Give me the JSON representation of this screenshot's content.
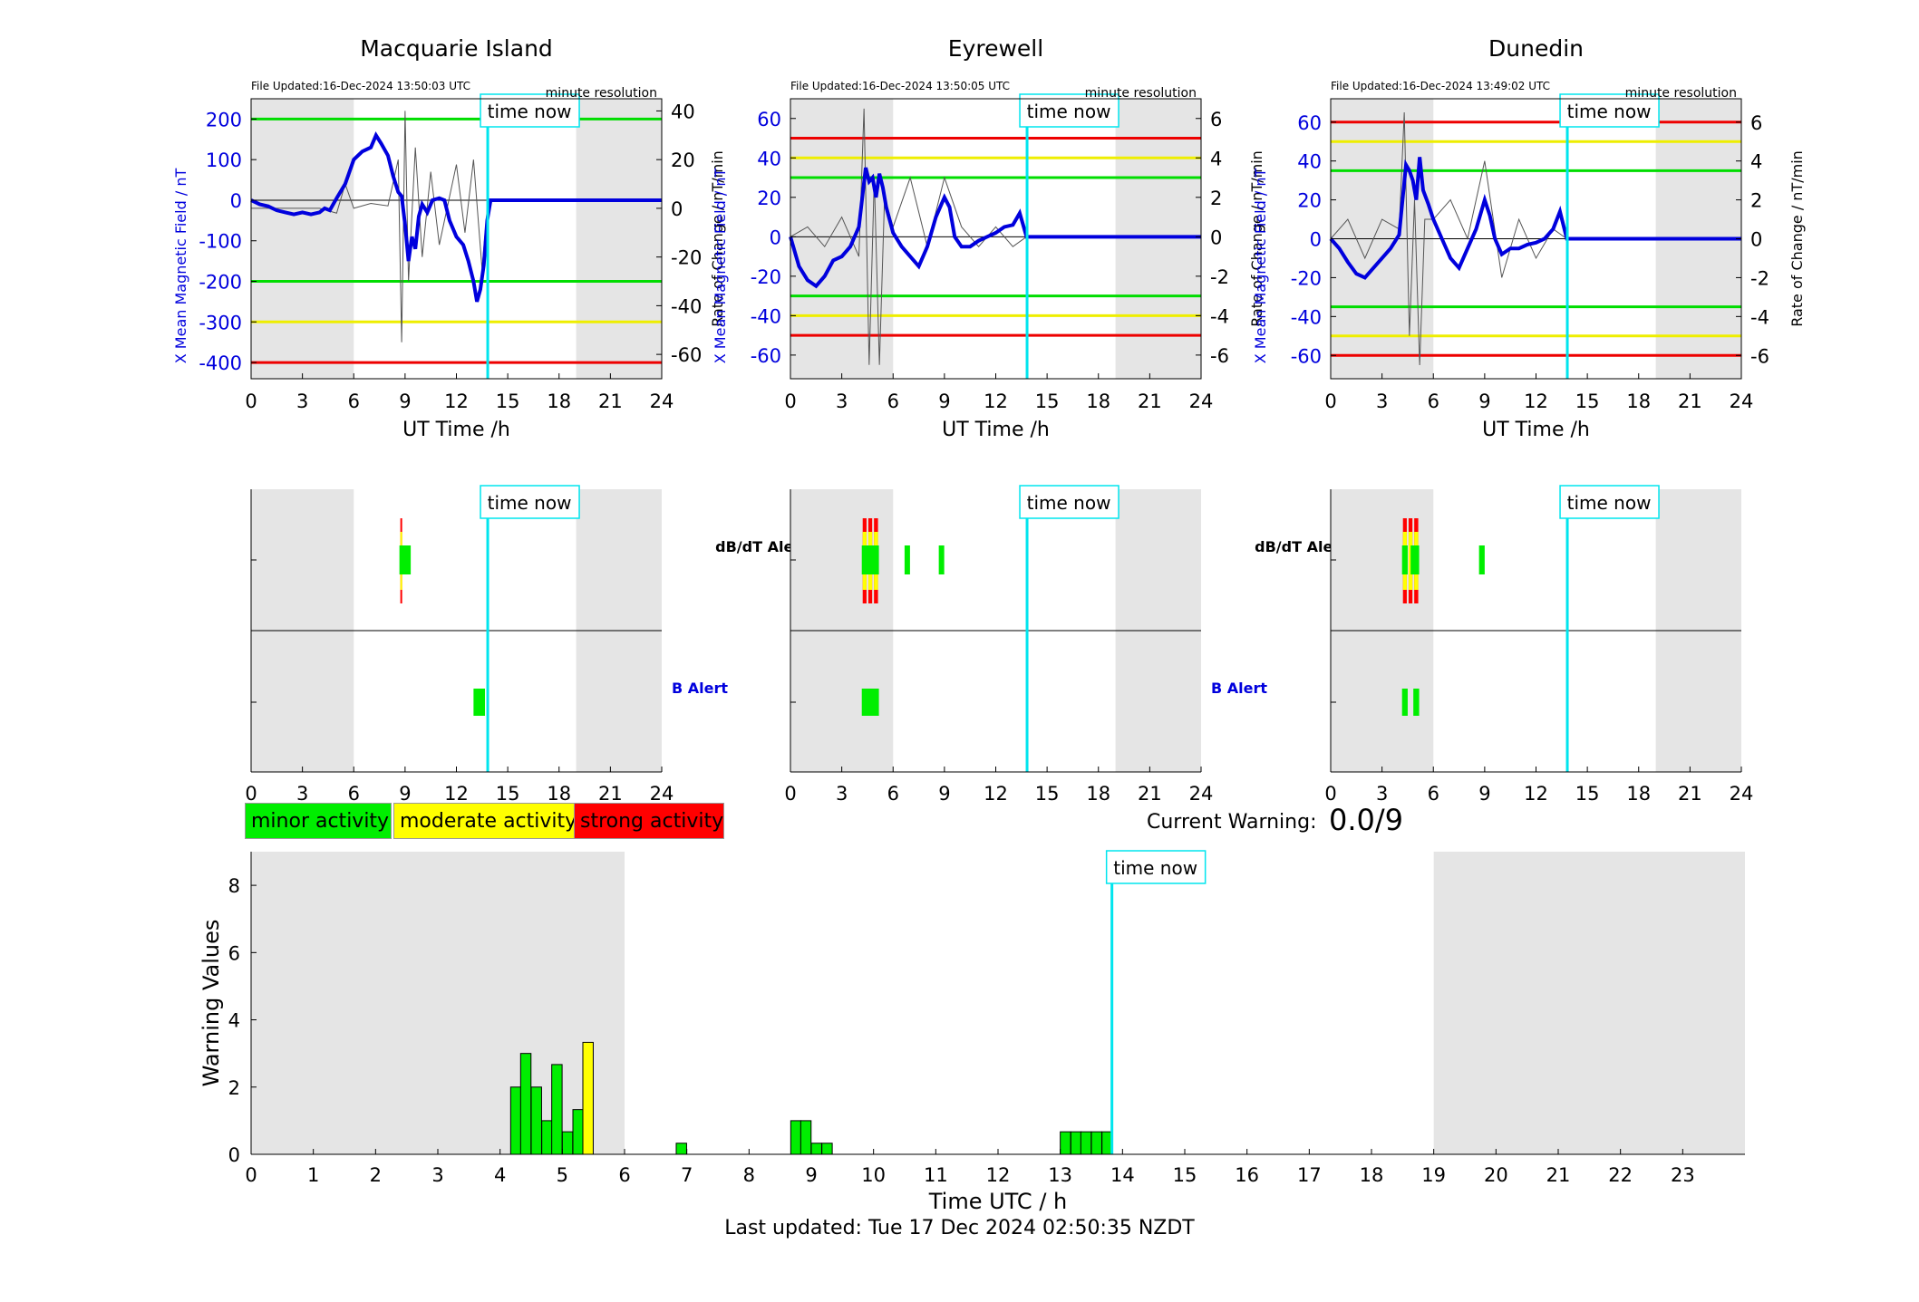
{
  "stations": [
    {
      "name": "Macquarie Island",
      "file_updated": "File Updated:16-Dec-2024 13:50:03 UTC",
      "resolution": "minute resolution",
      "ylabel_left": "X Mean Magnetic Field / nT",
      "ylabel_right": "Rate of Change / nT/min",
      "xlabel": "UT Time /h",
      "y_ticks": [
        200,
        100,
        0,
        -100,
        -200,
        -300,
        -400
      ],
      "ylim": [
        -440,
        250
      ],
      "rate_ticks": [
        40,
        20,
        0,
        -20,
        -40,
        -60
      ],
      "rate_lim": [
        -70,
        45
      ],
      "thresholds": [
        {
          "value": 200,
          "color": "#00dd00"
        },
        {
          "value": -200,
          "color": "#00dd00"
        },
        {
          "value": -300,
          "color": "#eeee00"
        },
        {
          "value": -400,
          "color": "#ee0000"
        }
      ]
    },
    {
      "name": "Eyrewell",
      "file_updated": "File Updated:16-Dec-2024 13:50:05 UTC",
      "resolution": "minute resolution",
      "ylabel_left": "X Mean Magnetic Field / nT",
      "ylabel_right": "Rate of Change / nT/min",
      "xlabel": "UT Time /h",
      "y_ticks": [
        60,
        40,
        20,
        0,
        -20,
        -40,
        -60
      ],
      "ylim": [
        -72,
        70
      ],
      "rate_ticks": [
        6,
        4,
        2,
        0,
        -2,
        -4,
        -6
      ],
      "rate_lim": [
        -7.2,
        7
      ],
      "thresholds": [
        {
          "value": 50,
          "color": "#ee0000"
        },
        {
          "value": 40,
          "color": "#eeee00"
        },
        {
          "value": 30,
          "color": "#00dd00"
        },
        {
          "value": -30,
          "color": "#00dd00"
        },
        {
          "value": -40,
          "color": "#eeee00"
        },
        {
          "value": -50,
          "color": "#ee0000"
        }
      ]
    },
    {
      "name": "Dunedin",
      "file_updated": "File Updated:16-Dec-2024 13:49:02 UTC",
      "resolution": "minute resolution",
      "ylabel_left": "X Mean Magnetic Field / nT",
      "ylabel_right": "Rate of Change / nT/min",
      "xlabel": "UT Time /h",
      "y_ticks": [
        60,
        40,
        20,
        0,
        -20,
        -40,
        -60
      ],
      "ylim": [
        -72,
        72
      ],
      "rate_ticks": [
        6,
        4,
        2,
        0,
        -2,
        -4,
        -6
      ],
      "rate_lim": [
        -7.2,
        7.2
      ],
      "thresholds": [
        {
          "value": 60,
          "color": "#ee0000"
        },
        {
          "value": 50,
          "color": "#eeee00"
        },
        {
          "value": 35,
          "color": "#00dd00"
        },
        {
          "value": -35,
          "color": "#00dd00"
        },
        {
          "value": -50,
          "color": "#eeee00"
        },
        {
          "value": -60,
          "color": "#ee0000"
        }
      ]
    }
  ],
  "time_now_label": "time now",
  "x_ticks_24h": [
    0,
    3,
    6,
    9,
    12,
    15,
    18,
    21,
    24
  ],
  "dbdt_alert_label": "dB/dT Alert",
  "b_alert_label": "B Alert",
  "legend": {
    "minor": "minor activity",
    "moderate": "moderate activity",
    "strong": "strong activity"
  },
  "current_warning_label": "Current Warning:",
  "current_warning_value": "0.0/9",
  "last_updated": "Last updated: Tue 17 Dec 2024 02:50:35 NZDT",
  "colors": {
    "field_line": "#0000dd",
    "rate_line": "#555555",
    "time_now": "#00e5ee",
    "night_shade": "#e5e5e5",
    "minor": "#00ee00",
    "moderate": "#ffff00",
    "strong": "#ff0000",
    "blue_text": "#0000dd"
  },
  "chart_data": [
    {
      "type": "line",
      "title": "Macquarie Island",
      "xlabel": "UT Time /h",
      "ylabel": "X Mean Magnetic Field / nT",
      "xlim": [
        0,
        24
      ],
      "ylim": [
        -440,
        250
      ],
      "shaded_x": [
        [
          0,
          6
        ],
        [
          19,
          24
        ]
      ],
      "time_now": 13.83,
      "series": [
        {
          "x": [
            0,
            0.5,
            1,
            1.5,
            2,
            2.5,
            3,
            3.5,
            4,
            4.3,
            4.6,
            5,
            5.5,
            6,
            6.5,
            7,
            7.3,
            7.6,
            8,
            8.3,
            8.6,
            8.8,
            9,
            9.2,
            9.4,
            9.6,
            9.8,
            10,
            10.3,
            10.6,
            11,
            11.3,
            11.6,
            12,
            12.4,
            12.7,
            13,
            13.2,
            13.4,
            13.6,
            13.8,
            14,
            16,
            18,
            20,
            22,
            24
          ],
          "y": [
            0,
            -10,
            -15,
            -25,
            -30,
            -35,
            -30,
            -35,
            -30,
            -20,
            -25,
            5,
            40,
            100,
            120,
            130,
            160,
            140,
            110,
            60,
            20,
            10,
            -60,
            -150,
            -90,
            -120,
            -40,
            -10,
            -30,
            0,
            5,
            0,
            -50,
            -90,
            -110,
            -150,
            -200,
            -250,
            -220,
            -160,
            -50,
            0,
            0,
            0,
            0,
            0,
            0
          ]
        },
        {
          "name": "Rate of Change",
          "x": [
            0,
            1,
            2,
            3,
            4,
            5,
            5.5,
            6,
            7,
            8,
            8.6,
            8.8,
            9,
            9.2,
            9.6,
            10,
            10.5,
            11,
            12,
            12.5,
            13,
            13.5,
            13.8
          ],
          "y": [
            0,
            0,
            0,
            0,
            0,
            -2,
            10,
            0,
            2,
            1,
            20,
            -55,
            40,
            -30,
            25,
            -20,
            15,
            -15,
            18,
            -10,
            20,
            -25,
            0
          ]
        }
      ]
    },
    {
      "type": "line",
      "title": "Eyrewell",
      "xlabel": "UT Time /h",
      "ylabel": "X Mean Magnetic Field / nT",
      "xlim": [
        0,
        24
      ],
      "ylim": [
        -72,
        70
      ],
      "shaded_x": [
        [
          0,
          6
        ],
        [
          19,
          24
        ]
      ],
      "time_now": 13.83,
      "series": [
        {
          "x": [
            0,
            0.5,
            1,
            1.5,
            2,
            2.5,
            3,
            3.5,
            4,
            4.4,
            4.6,
            4.8,
            5,
            5.2,
            5.4,
            5.6,
            6,
            6.5,
            7,
            7.5,
            8,
            8.5,
            9,
            9.3,
            9.6,
            10,
            10.5,
            11,
            11.5,
            12,
            12.5,
            13,
            13.4,
            13.8,
            16,
            20,
            24
          ],
          "y": [
            0,
            -15,
            -22,
            -25,
            -20,
            -12,
            -10,
            -5,
            5,
            35,
            28,
            30,
            20,
            32,
            25,
            15,
            2,
            -5,
            -10,
            -15,
            -5,
            10,
            20,
            15,
            0,
            -5,
            -5,
            -2,
            0,
            2,
            5,
            6,
            12,
            0,
            0,
            0,
            0
          ]
        },
        {
          "name": "Rate of Change",
          "x": [
            0,
            1,
            2,
            3,
            4,
            4.3,
            4.6,
            4.9,
            5.2,
            5.5,
            6,
            7,
            8,
            9,
            10,
            11,
            12,
            13,
            13.8
          ],
          "y": [
            0,
            0.5,
            -0.5,
            1,
            -1,
            6.5,
            -6.5,
            3,
            -6.5,
            2,
            0.5,
            3,
            -0.5,
            3,
            0.5,
            -0.5,
            0.5,
            -0.5,
            0
          ]
        }
      ]
    },
    {
      "type": "line",
      "title": "Dunedin",
      "xlabel": "UT Time /h",
      "ylabel": "X Mean Magnetic Field / nT",
      "xlim": [
        0,
        24
      ],
      "ylim": [
        -72,
        72
      ],
      "shaded_x": [
        [
          0,
          6
        ],
        [
          19,
          24
        ]
      ],
      "time_now": 13.83,
      "series": [
        {
          "x": [
            0,
            0.5,
            1,
            1.5,
            2,
            2.5,
            3,
            3.5,
            4,
            4.4,
            4.6,
            4.8,
            5,
            5.2,
            5.4,
            5.7,
            6,
            6.5,
            7,
            7.5,
            8,
            8.5,
            9,
            9.3,
            9.6,
            10,
            10.5,
            11,
            11.5,
            12,
            12.5,
            13,
            13.4,
            13.8,
            16,
            20,
            24
          ],
          "y": [
            0,
            -5,
            -12,
            -18,
            -20,
            -15,
            -10,
            -5,
            2,
            38,
            35,
            30,
            20,
            42,
            25,
            18,
            10,
            0,
            -10,
            -15,
            -5,
            5,
            20,
            12,
            0,
            -8,
            -5,
            -5,
            -3,
            -2,
            0,
            5,
            14,
            0,
            0,
            0,
            0
          ]
        },
        {
          "name": "Rate of Change",
          "x": [
            0,
            1,
            2,
            3,
            4,
            4.3,
            4.6,
            4.9,
            5.2,
            5.5,
            6,
            7,
            8,
            9,
            10,
            11,
            12,
            13,
            13.8
          ],
          "y": [
            0,
            1,
            -1,
            1,
            0.5,
            6.5,
            -5,
            2,
            -6.5,
            1,
            1,
            2,
            0,
            4,
            -2,
            1,
            -1,
            0.5,
            0
          ]
        }
      ]
    },
    {
      "type": "bar",
      "title": "",
      "xlabel": "Time UTC / h",
      "ylabel": "Warning Values",
      "xlim": [
        0,
        24
      ],
      "ylim": [
        0,
        9
      ],
      "y_ticks": [
        0,
        2,
        4,
        6,
        8
      ],
      "x_ticks": [
        0,
        1,
        2,
        3,
        4,
        5,
        6,
        7,
        8,
        9,
        10,
        11,
        12,
        13,
        14,
        15,
        16,
        17,
        18,
        19,
        20,
        21,
        22,
        23
      ],
      "shaded_x": [
        [
          0,
          6
        ],
        [
          19,
          24
        ]
      ],
      "time_now": 13.83,
      "bin_width": 0.1667,
      "bars": [
        {
          "x": 4.17,
          "value": 2.0,
          "level": "minor"
        },
        {
          "x": 4.33,
          "value": 3.0,
          "level": "minor"
        },
        {
          "x": 4.5,
          "value": 2.0,
          "level": "minor"
        },
        {
          "x": 4.67,
          "value": 1.0,
          "level": "minor"
        },
        {
          "x": 4.83,
          "value": 2.67,
          "level": "minor"
        },
        {
          "x": 5.0,
          "value": 0.67,
          "level": "minor"
        },
        {
          "x": 5.17,
          "value": 1.33,
          "level": "minor"
        },
        {
          "x": 5.33,
          "value": 3.33,
          "level": "moderate"
        },
        {
          "x": 6.83,
          "value": 0.33,
          "level": "minor"
        },
        {
          "x": 8.67,
          "value": 1.0,
          "level": "minor"
        },
        {
          "x": 8.83,
          "value": 1.0,
          "level": "minor"
        },
        {
          "x": 9.0,
          "value": 0.33,
          "level": "minor"
        },
        {
          "x": 9.17,
          "value": 0.33,
          "level": "minor"
        },
        {
          "x": 13.0,
          "value": 0.67,
          "level": "minor"
        },
        {
          "x": 13.17,
          "value": 0.67,
          "level": "minor"
        },
        {
          "x": 13.33,
          "value": 0.67,
          "level": "minor"
        },
        {
          "x": 13.5,
          "value": 0.67,
          "level": "minor"
        },
        {
          "x": 13.67,
          "value": 0.67,
          "level": "minor"
        }
      ]
    }
  ],
  "alerts": [
    {
      "station": "Macquarie Island",
      "dbdt": [
        {
          "start": 8.67,
          "end": 8.83,
          "level": "strong"
        },
        {
          "start": 8.67,
          "end": 9.33,
          "level": "minor"
        }
      ],
      "b": [
        {
          "start": 13.0,
          "end": 13.67,
          "level": "minor"
        }
      ]
    },
    {
      "station": "Eyrewell",
      "dbdt": [
        {
          "start": 4.17,
          "end": 4.5,
          "level": "strong"
        },
        {
          "start": 4.5,
          "end": 4.83,
          "level": "strong"
        },
        {
          "start": 4.83,
          "end": 5.17,
          "level": "strong"
        },
        {
          "start": 4.17,
          "end": 5.17,
          "level": "minor"
        },
        {
          "start": 6.67,
          "end": 6.83,
          "level": "minor"
        },
        {
          "start": 8.67,
          "end": 8.83,
          "level": "minor"
        }
      ],
      "b": [
        {
          "start": 4.17,
          "end": 5.17,
          "level": "minor"
        }
      ]
    },
    {
      "station": "Dunedin",
      "dbdt": [
        {
          "start": 4.17,
          "end": 4.5,
          "level": "strong"
        },
        {
          "start": 4.5,
          "end": 4.83,
          "level": "strong"
        },
        {
          "start": 4.83,
          "end": 5.17,
          "level": "strong"
        },
        {
          "start": 4.17,
          "end": 4.5,
          "level": "minor"
        },
        {
          "start": 4.67,
          "end": 5.17,
          "level": "minor"
        },
        {
          "start": 8.67,
          "end": 9.0,
          "level": "minor"
        }
      ],
      "b": [
        {
          "start": 4.17,
          "end": 4.5,
          "level": "minor"
        },
        {
          "start": 4.83,
          "end": 5.17,
          "level": "minor"
        }
      ]
    }
  ]
}
